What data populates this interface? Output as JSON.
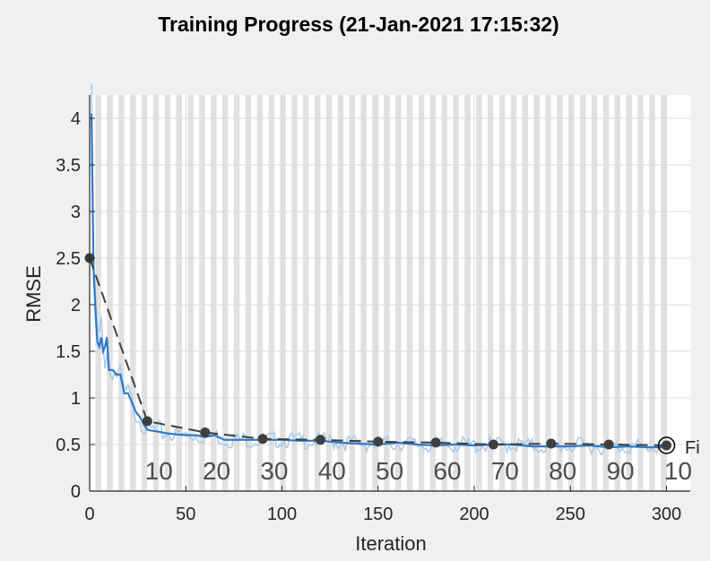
{
  "title": "Training Progress (21-Jan-2021 17:15:32)",
  "colors": {
    "raw_series": "#a9cbe8",
    "smoothed_series": "#2f7ac8",
    "validation": "#3f3f3f",
    "epoch_band": "#e1e1e1",
    "grid": "#dcdcdc"
  },
  "chart_data": {
    "type": "line",
    "title": "Training Progress (21-Jan-2021 17:15:32)",
    "xlabel": "Iteration",
    "ylabel": "RMSE",
    "xlim": [
      0,
      300
    ],
    "ylim": [
      0,
      4.2
    ],
    "xticks": [
      0,
      50,
      100,
      150,
      200,
      250,
      300
    ],
    "yticks": [
      0,
      0.5,
      1,
      1.5,
      2,
      2.5,
      3,
      3.5,
      4
    ],
    "ytick_labels": [
      "0",
      "0.5",
      "1",
      "1.5",
      "2",
      "2.5",
      "3",
      "3.5",
      "4"
    ],
    "grid": true,
    "epoch_labels": [
      {
        "x": 36,
        "label": "10"
      },
      {
        "x": 66,
        "label": "20"
      },
      {
        "x": 96,
        "label": "30"
      },
      {
        "x": 126,
        "label": "40"
      },
      {
        "x": 156,
        "label": "50"
      },
      {
        "x": 186,
        "label": "60"
      },
      {
        "x": 216,
        "label": "70"
      },
      {
        "x": 246,
        "label": "80"
      },
      {
        "x": 276,
        "label": "90"
      },
      {
        "x": 306,
        "label": "10"
      }
    ],
    "final_marker_label": "Fi",
    "series": [
      {
        "values_x": [
          1,
          2,
          3,
          4,
          5,
          6,
          7,
          8,
          9,
          10,
          12,
          14,
          16,
          18,
          20,
          22,
          24,
          26,
          28,
          30,
          32,
          35,
          40,
          45,
          50,
          55,
          60,
          65,
          70,
          75,
          80,
          90,
          100,
          110,
          120,
          130,
          140,
          150,
          160,
          170,
          180,
          190,
          200,
          210,
          220,
          230,
          240,
          250,
          260,
          270,
          280,
          290,
          300
        ],
        "values_y": [
          4.05,
          2.4,
          1.95,
          1.6,
          1.55,
          1.65,
          1.5,
          1.55,
          1.65,
          1.3,
          1.3,
          1.25,
          1.25,
          1.05,
          1.05,
          0.95,
          0.85,
          0.8,
          0.72,
          0.66,
          0.65,
          0.64,
          0.62,
          0.61,
          0.6,
          0.6,
          0.58,
          0.6,
          0.55,
          0.55,
          0.55,
          0.55,
          0.55,
          0.54,
          0.54,
          0.52,
          0.51,
          0.5,
          0.52,
          0.5,
          0.49,
          0.5,
          0.49,
          0.5,
          0.5,
          0.48,
          0.48,
          0.48,
          0.49,
          0.47,
          0.48,
          0.47,
          0.47
        ]
      },
      {
        "values_x": [
          0,
          30,
          60,
          90,
          120,
          150,
          180,
          210,
          240,
          270,
          300
        ],
        "values_y": [
          2.5,
          0.75,
          0.63,
          0.56,
          0.55,
          0.53,
          0.52,
          0.5,
          0.51,
          0.5,
          0.49
        ]
      }
    ]
  }
}
